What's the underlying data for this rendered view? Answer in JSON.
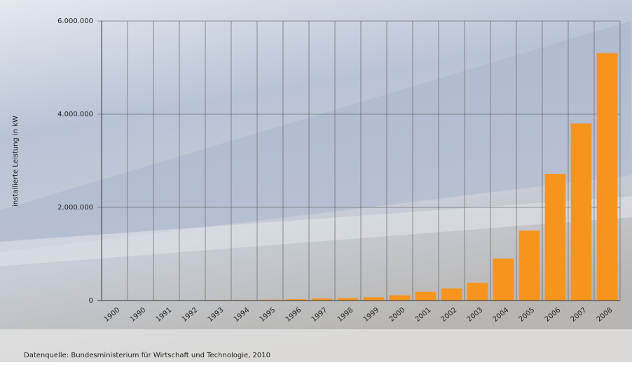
{
  "chart_data": {
    "type": "bar",
    "y_label": "installierte Leistung in kW",
    "source": "Datenquelle: Bundesministerium für Wirtschaft und Technologie, 2010",
    "categories": [
      "1900",
      "1990",
      "1991",
      "1992",
      "1993",
      "1994",
      "1995",
      "1996",
      "1997",
      "1998",
      "1999",
      "2000",
      "2001",
      "2002",
      "2003",
      "2004",
      "2005",
      "2006",
      "2007",
      "2008"
    ],
    "values": [
      1000,
      2000,
      3000,
      6000,
      9000,
      12000,
      18000,
      28000,
      42000,
      54000,
      70000,
      114000,
      186000,
      260000,
      380000,
      900000,
      1500000,
      2720000,
      3800000,
      5310000
    ],
    "color": "#f7941d",
    "ylim": [
      0,
      6000000
    ],
    "yticks": [
      0,
      {
        "value": 2000000,
        "label": "2.000.000"
      },
      {
        "value": 4000000,
        "label": "4.000.000"
      },
      {
        "value": 6000000,
        "label": "6.000.000"
      }
    ],
    "grid": true
  }
}
